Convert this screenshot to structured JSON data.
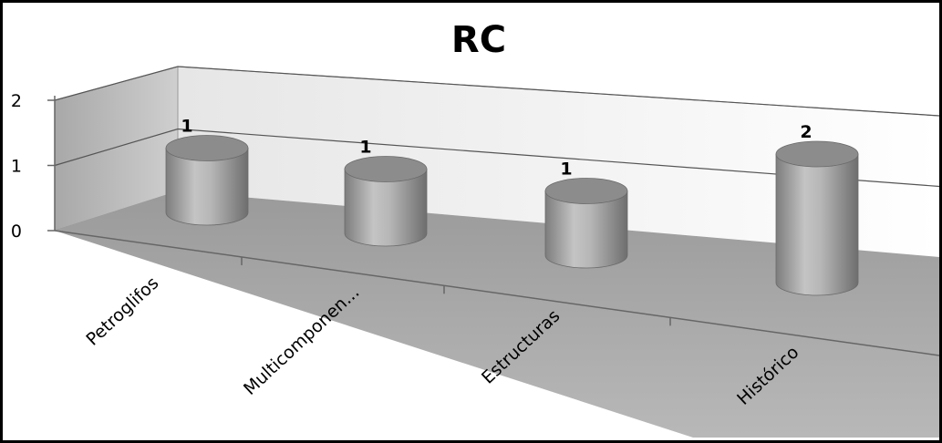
{
  "chart_data": {
    "type": "bar",
    "title": "RC",
    "xlabel": "",
    "ylabel": "",
    "categories": [
      "Petroglifos",
      "Multicomponen...",
      "Estructuras",
      "Histórico"
    ],
    "series": [
      {
        "values": [
          1,
          1,
          1,
          2
        ]
      }
    ],
    "data_labels": [
      "1",
      "1",
      "1",
      "2"
    ],
    "yticks": [
      "0",
      "1",
      "2"
    ],
    "ylim": [
      0,
      2
    ],
    "grid": true,
    "legend": "none",
    "style": "3d-cylinder",
    "colors": {
      "bar": "#a6a6a6",
      "wall": "#c8c8c8",
      "floor": "#9a9a9a",
      "grid": "#555555"
    }
  }
}
